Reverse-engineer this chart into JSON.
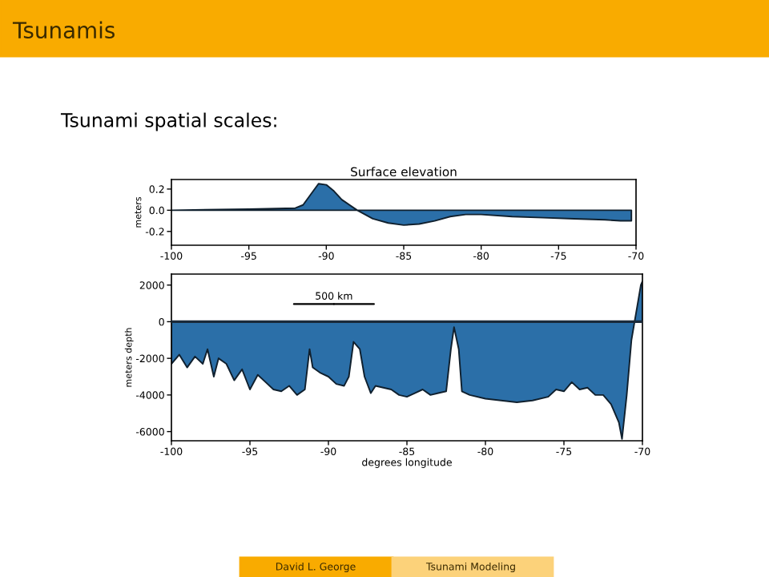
{
  "chart_data": [
    {
      "type": "area",
      "title": "Surface elevation",
      "ylabel": "meters",
      "color": "#2b6fa8",
      "x": [
        -100,
        -95,
        -92,
        -91.5,
        -91,
        -90.5,
        -90,
        -89.5,
        -89,
        -88,
        -87,
        -86,
        -85,
        -84,
        -83,
        -82,
        -81,
        -80,
        -78,
        -76,
        -74,
        -72,
        -71,
        -70.3
      ],
      "values": [
        0.0,
        0.01,
        0.02,
        0.05,
        0.15,
        0.25,
        0.24,
        0.18,
        0.1,
        0.0,
        -0.08,
        -0.12,
        -0.14,
        -0.13,
        -0.1,
        -0.06,
        -0.04,
        -0.04,
        -0.06,
        -0.07,
        -0.08,
        -0.09,
        -0.1,
        -0.1
      ],
      "xlim": [
        -100,
        -70
      ],
      "ylim": [
        -0.33,
        0.29
      ],
      "xticks": [
        -100,
        -95,
        -90,
        -85,
        -80,
        -75,
        -70
      ],
      "yticks": [
        -0.2,
        {
          "value": 0,
          "label": "0.0"
        },
        0.2
      ],
      "annotations": [
        "Tsunamis",
        "Tsunami spatial scales:"
      ]
    },
    {
      "type": "area",
      "xlabel": "degrees longitude",
      "ylabel": "meters depth",
      "color": "#2b6fa8",
      "x": [
        -100,
        -99.5,
        -99,
        -98.5,
        -98,
        -97.7,
        -97.3,
        -97,
        -96.5,
        -96,
        -95.5,
        -95,
        -94.5,
        -94,
        -93.5,
        -93,
        -92.5,
        -92,
        -91.5,
        -91.2,
        -91,
        -90.5,
        -90,
        -89.5,
        -89,
        -88.7,
        -88.4,
        -88,
        -87.7,
        -87.3,
        -87,
        -86.5,
        -86,
        -85.5,
        -85,
        -84.5,
        -84,
        -83.5,
        -83,
        -82.5,
        -82.2,
        -82,
        -81.7,
        -81.5,
        -81,
        -80,
        -79,
        -78,
        -77,
        -76,
        -75.5,
        -75,
        -74.5,
        -74,
        -73.5,
        -73,
        -72.5,
        -72,
        -71.5,
        -71.3,
        -71,
        -70.7,
        -70.5,
        -70.3,
        -70.1,
        -70
      ],
      "values": [
        -2300,
        -1800,
        -2500,
        -1900,
        -2300,
        -1500,
        -3000,
        -2000,
        -2300,
        -3200,
        -2600,
        -3700,
        -2900,
        -3300,
        -3700,
        -3800,
        -3500,
        -4000,
        -3700,
        -1500,
        -2500,
        -2800,
        -3000,
        -3400,
        -3500,
        -3000,
        -1100,
        -1500,
        -3000,
        -3900,
        -3500,
        -3600,
        -3700,
        -4000,
        -4100,
        -3900,
        -3700,
        -4000,
        -3900,
        -3800,
        -1500,
        -300,
        -1500,
        -3800,
        -4000,
        -4200,
        -4300,
        -4400,
        -4300,
        -4100,
        -3700,
        -3800,
        -3300,
        -3700,
        -3600,
        -4000,
        -4000,
        -4500,
        -5500,
        -6400,
        -4000,
        -1000,
        0,
        1000,
        2000,
        2200
      ],
      "xlim": [
        -100,
        -70
      ],
      "ylim": [
        -6500,
        2600
      ],
      "xticks": [
        -100,
        -95,
        -90,
        -85,
        -80,
        -75,
        -70
      ],
      "yticks": [
        -6000,
        -4000,
        -2000,
        0,
        2000
      ],
      "ref_lines": [
        {
          "axis": "y",
          "value": 0,
          "color": "#1a2a3a"
        }
      ],
      "annotations": [
        "500 km",
        "David L. George",
        "Tsunami Modeling"
      ]
    }
  ]
}
